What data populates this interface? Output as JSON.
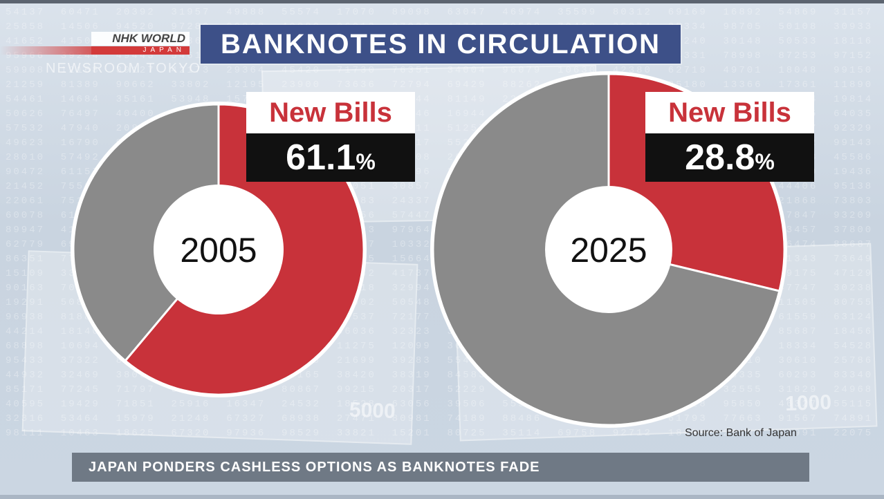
{
  "header": {
    "logo_top": "NHK WORLD",
    "logo_bottom": "JAPAN",
    "newsroom": "NEWSROOM TOKYO",
    "title": "BANKNOTES IN CIRCULATION"
  },
  "chart_data": [
    {
      "type": "pie",
      "center_label": "2005",
      "slices": [
        {
          "label": "New Bills",
          "value": 61.1,
          "color": "#c8323a"
        },
        {
          "value": 38.9,
          "color": "#8a8a8a"
        }
      ],
      "annotation": {
        "label": "New Bills",
        "value": "61.1",
        "unit": "%"
      }
    },
    {
      "type": "pie",
      "center_label": "2025",
      "slices": [
        {
          "label": "New Bills",
          "value": 28.8,
          "color": "#c8323a"
        },
        {
          "value": 71.2,
          "color": "#8a8a8a"
        }
      ],
      "annotation": {
        "label": "New Bills",
        "value": "28.8",
        "unit": "%"
      }
    }
  ],
  "source": "Source: Bank of Japan",
  "banner": "JAPAN PONDERS CASHLESS OPTIONS AS BANKNOTES FADE",
  "colors": {
    "new_bills": "#c8323a",
    "other": "#8a8a8a",
    "title_bg": "#3d5088",
    "accent": "#d33a3a"
  }
}
